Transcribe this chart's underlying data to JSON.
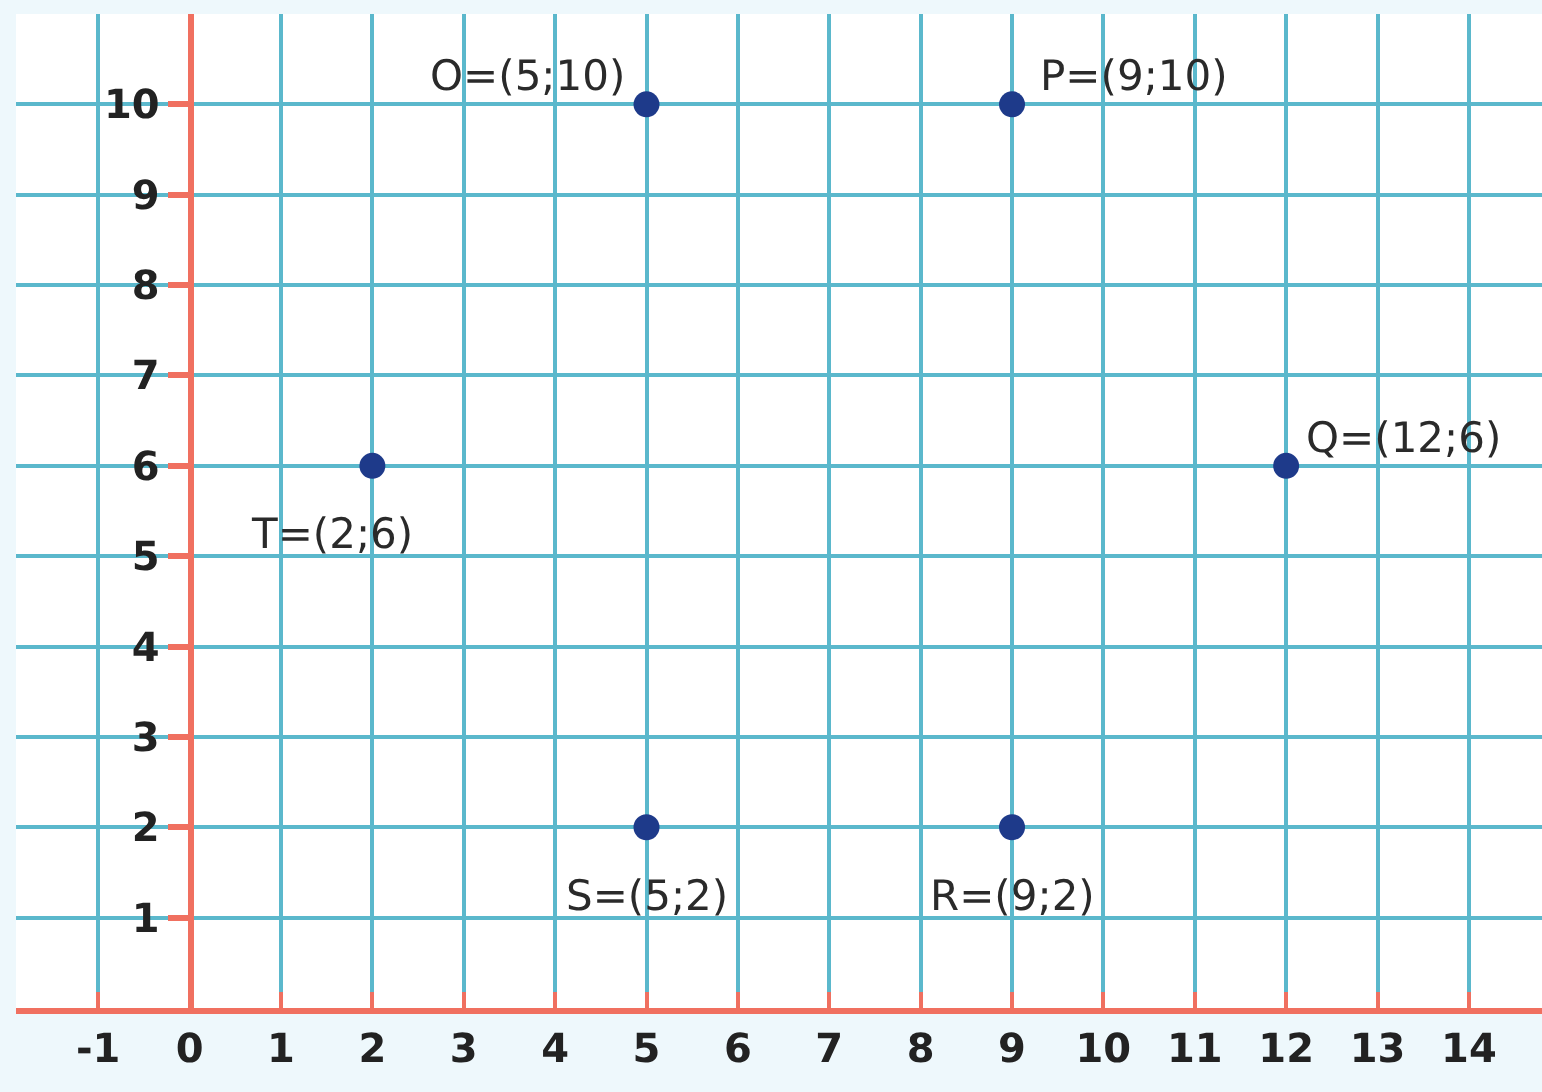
{
  "chart_data": {
    "type": "scatter",
    "x": [
      5,
      9,
      12,
      9,
      5,
      2
    ],
    "values": [
      10,
      10,
      6,
      2,
      2,
      6
    ],
    "color": "#1e3a8a",
    "marker": "circle",
    "xlim": [
      -1.9,
      14.8
    ],
    "ylim": [
      0,
      11.0
    ],
    "xticks": [
      -1,
      0,
      1,
      2,
      3,
      4,
      5,
      6,
      7,
      8,
      9,
      10,
      11,
      12,
      13,
      14
    ],
    "yticks": [
      1,
      2,
      3,
      4,
      5,
      6,
      7,
      8,
      9,
      10
    ],
    "grid": true,
    "annotations": [
      {
        "text": "O=(5;10)",
        "x": 5,
        "y": 10
      },
      {
        "text": "P=(9;10)",
        "x": 9,
        "y": 10
      },
      {
        "text": "Q=(12;6)",
        "x": 12,
        "y": 6
      },
      {
        "text": "R=(9;2)",
        "x": 9,
        "y": 2
      },
      {
        "text": "S=(5;2)",
        "x": 5,
        "y": 2
      },
      {
        "text": "T=(2;6)",
        "x": 2,
        "y": 6
      }
    ]
  }
}
